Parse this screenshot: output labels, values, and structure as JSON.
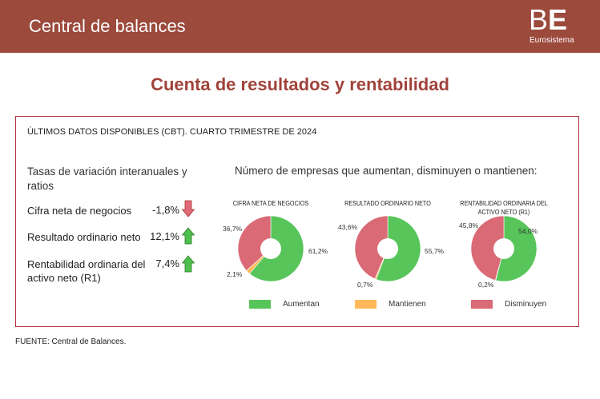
{
  "header": {
    "title": "Central de balances",
    "logo_text": "BE",
    "logo_sub": "Eurosistema"
  },
  "page_title": "Cuenta de resultados y rentabilidad",
  "box": {
    "heading": "ÚLTIMOS DATOS DISPONIBLES (CBT). CUARTO TRIMESTRE DE 2024",
    "left_title": "Tasas de variación interanuales y ratios",
    "indicators": [
      {
        "label": "Cifra neta de negocios",
        "value": "-1,8%",
        "trend": "down"
      },
      {
        "label": "Resultado ordinario neto",
        "value": "12,1%",
        "trend": "up"
      },
      {
        "label": "Rentabilidad ordinaria del activo neto (R1)",
        "value": "7,4%",
        "trend": "up"
      }
    ],
    "right_title": "Número de empresas que aumentan, disminuyen o mantienen:"
  },
  "colors": {
    "aumentan": "#57c55a",
    "mantienen": "#ffb95a",
    "disminuyen": "#d96a76",
    "up_arrow": "#4cbf4c",
    "down_arrow": "#e06a78"
  },
  "chart_data": [
    {
      "type": "pie",
      "title": "CIFRA NETA DE NEGOCIOS",
      "categories": [
        "Aumentan",
        "Mantienen",
        "Disminuyen"
      ],
      "values": [
        61.2,
        2.1,
        36.7
      ],
      "labels": [
        "61,2%",
        "2,1%",
        "36,7%"
      ]
    },
    {
      "type": "pie",
      "title": "RESULTADO ORDINARIO NETO",
      "categories": [
        "Aumentan",
        "Mantienen",
        "Disminuyen"
      ],
      "values": [
        55.7,
        0.7,
        43.6
      ],
      "labels": [
        "55,7%",
        "0,7%",
        "43,6%"
      ]
    },
    {
      "type": "pie",
      "title": "RENTABILIDAD ORDINARIA DEL ACTIVO NETO (R1)",
      "categories": [
        "Aumentan",
        "Mantienen",
        "Disminuyen"
      ],
      "values": [
        54.0,
        0.2,
        45.8
      ],
      "labels": [
        "54,0%",
        "0,2%",
        "45,8%"
      ]
    }
  ],
  "legend": [
    "Aumentan",
    "Mantienen",
    "Disminuyen"
  ],
  "source": "FUENTE: Central de Balances."
}
